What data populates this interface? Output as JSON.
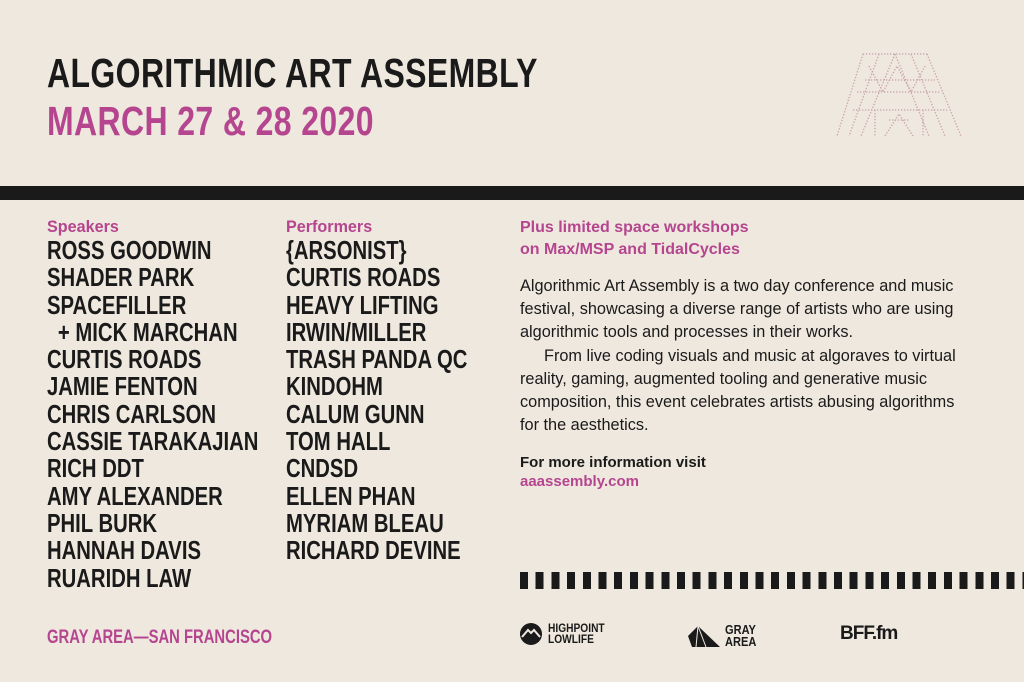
{
  "header": {
    "title": "ALGORITHMIC ART ASSEMBLY",
    "date": "MARCH 27 & 28 2020",
    "logo_icon": "aaa-dotted-logo"
  },
  "speakers": {
    "heading": "Speakers",
    "items": [
      "ROSS GOODWIN",
      "SHADER PARK",
      "SPACEFILLER",
      "  + MICK MARCHAN",
      "CURTIS ROADS",
      "JAMIE FENTON",
      "CHRIS CARLSON",
      "CASSIE TARAKAJIAN",
      "RICH DDT",
      "AMY ALEXANDER",
      "PHIL BURK",
      "HANNAH DAVIS",
      "RUARIDH LAW"
    ]
  },
  "performers": {
    "heading": "Performers",
    "items": [
      "{ARSONIST}",
      "CURTIS ROADS",
      "HEAVY LIFTING",
      "IRWIN/MILLER",
      "TRASH PANDA QC",
      "KINDOHM",
      "CALUM GUNN",
      "TOM HALL",
      "CNDSD",
      "ELLEN PHAN",
      "MYRIAM BLEAU",
      "RICHARD DEVINE"
    ]
  },
  "info": {
    "headline_1": "Plus limited space workshops",
    "headline_2": "on Max/MSP and TidalCycles",
    "paragraph_1": "Algorithmic Art Assembly is a two day conference and music festival, showcasing a diverse range of artists who are using algorithmic tools and processes in their works.",
    "paragraph_2": "From live coding visuals and music at algoraves to virtual reality, gaming, augmented tooling and generative music composition, this event celebrates artists abusing algorithms for the aesthetics.",
    "more_label": "For more information visit",
    "link": "aaassembly.com"
  },
  "footer": {
    "venue": "GRAY AREA—SAN FRANCISCO",
    "sponsors": [
      {
        "line1": "HIGHPOINT",
        "line2": "LOWLIFE"
      },
      {
        "line1": "GRAY",
        "line2": "AREA"
      },
      {
        "name": "BFF.fm"
      }
    ]
  },
  "colors": {
    "background": "#efe8de",
    "accent": "#b5458f",
    "ink": "#1a1a1a"
  }
}
